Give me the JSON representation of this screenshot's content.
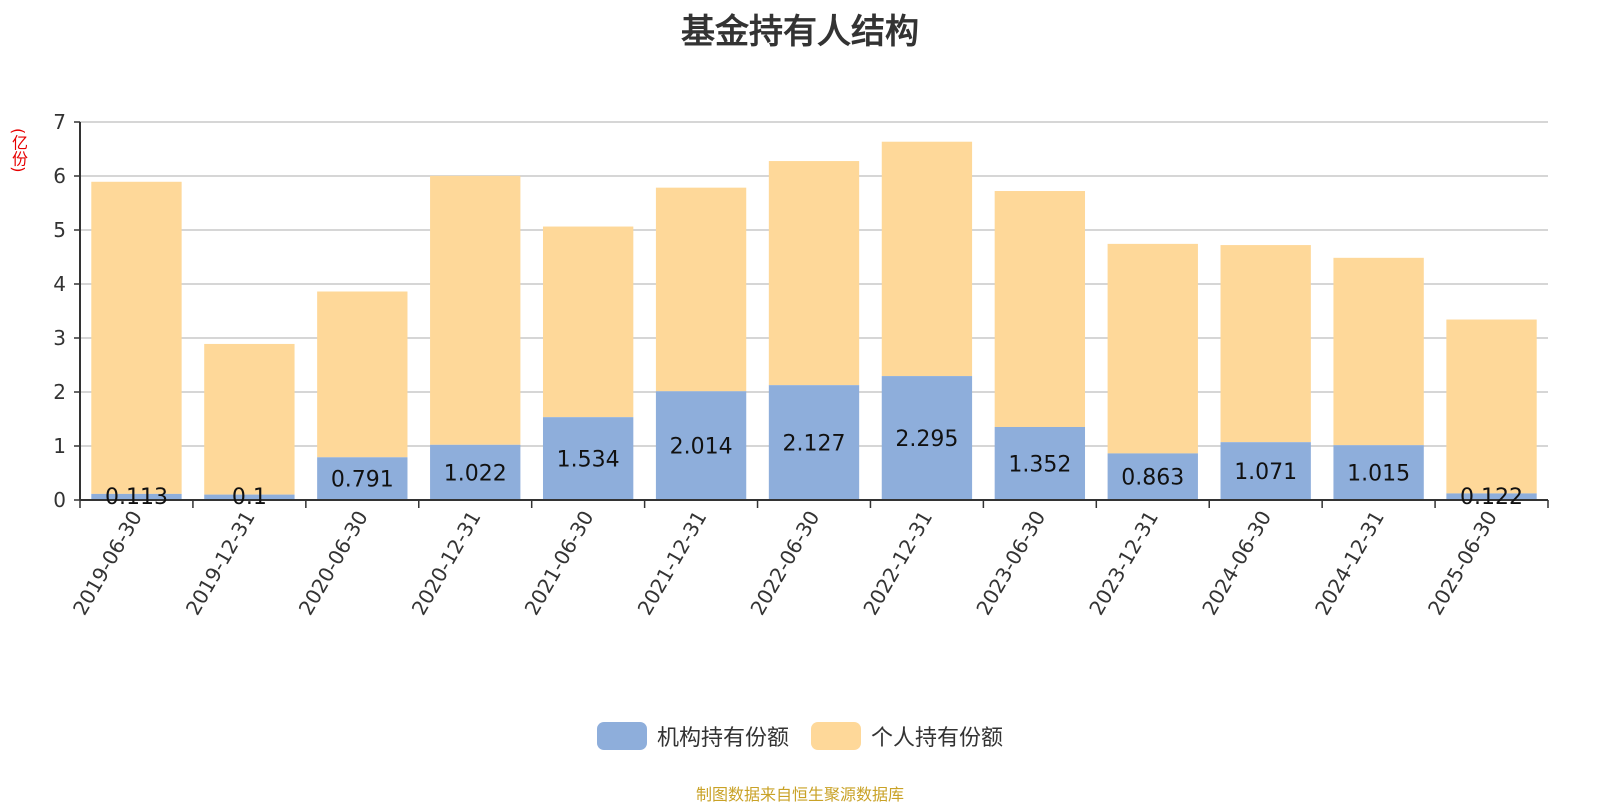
{
  "chart_data": {
    "type": "bar",
    "stacked": true,
    "title": "基金持有人结构",
    "unit_label": "(亿份)",
    "ylim": [
      0,
      7
    ],
    "yticks": [
      0,
      1,
      2,
      3,
      4,
      5,
      6,
      7
    ],
    "grid": true,
    "legend_position": "bottom",
    "categories": [
      "2019-06-30",
      "2019-12-31",
      "2020-06-30",
      "2020-12-31",
      "2021-06-30",
      "2021-12-31",
      "2022-06-30",
      "2022-12-31",
      "2023-06-30",
      "2023-12-31",
      "2024-06-30",
      "2024-12-31",
      "2025-06-30"
    ],
    "series": [
      {
        "name": "机构持有份额",
        "color": "#8eaedb",
        "values": [
          0.113,
          0.1,
          0.791,
          1.022,
          1.534,
          2.014,
          2.127,
          2.295,
          1.352,
          0.863,
          1.071,
          1.015,
          0.122
        ],
        "labels": [
          "0.113",
          "0.1",
          "0.791",
          "1.022",
          "1.534",
          "2.014",
          "2.127",
          "2.295",
          "1.352",
          "0.863",
          "1.071",
          "1.015",
          "0.122"
        ]
      },
      {
        "name": "个人持有份额",
        "color": "#fed899",
        "values": [
          5.78,
          2.79,
          3.07,
          4.98,
          3.53,
          3.77,
          4.15,
          4.34,
          4.37,
          3.88,
          3.65,
          3.47,
          3.22
        ]
      }
    ]
  },
  "source_note": "制图数据来自恒生聚源数据库"
}
